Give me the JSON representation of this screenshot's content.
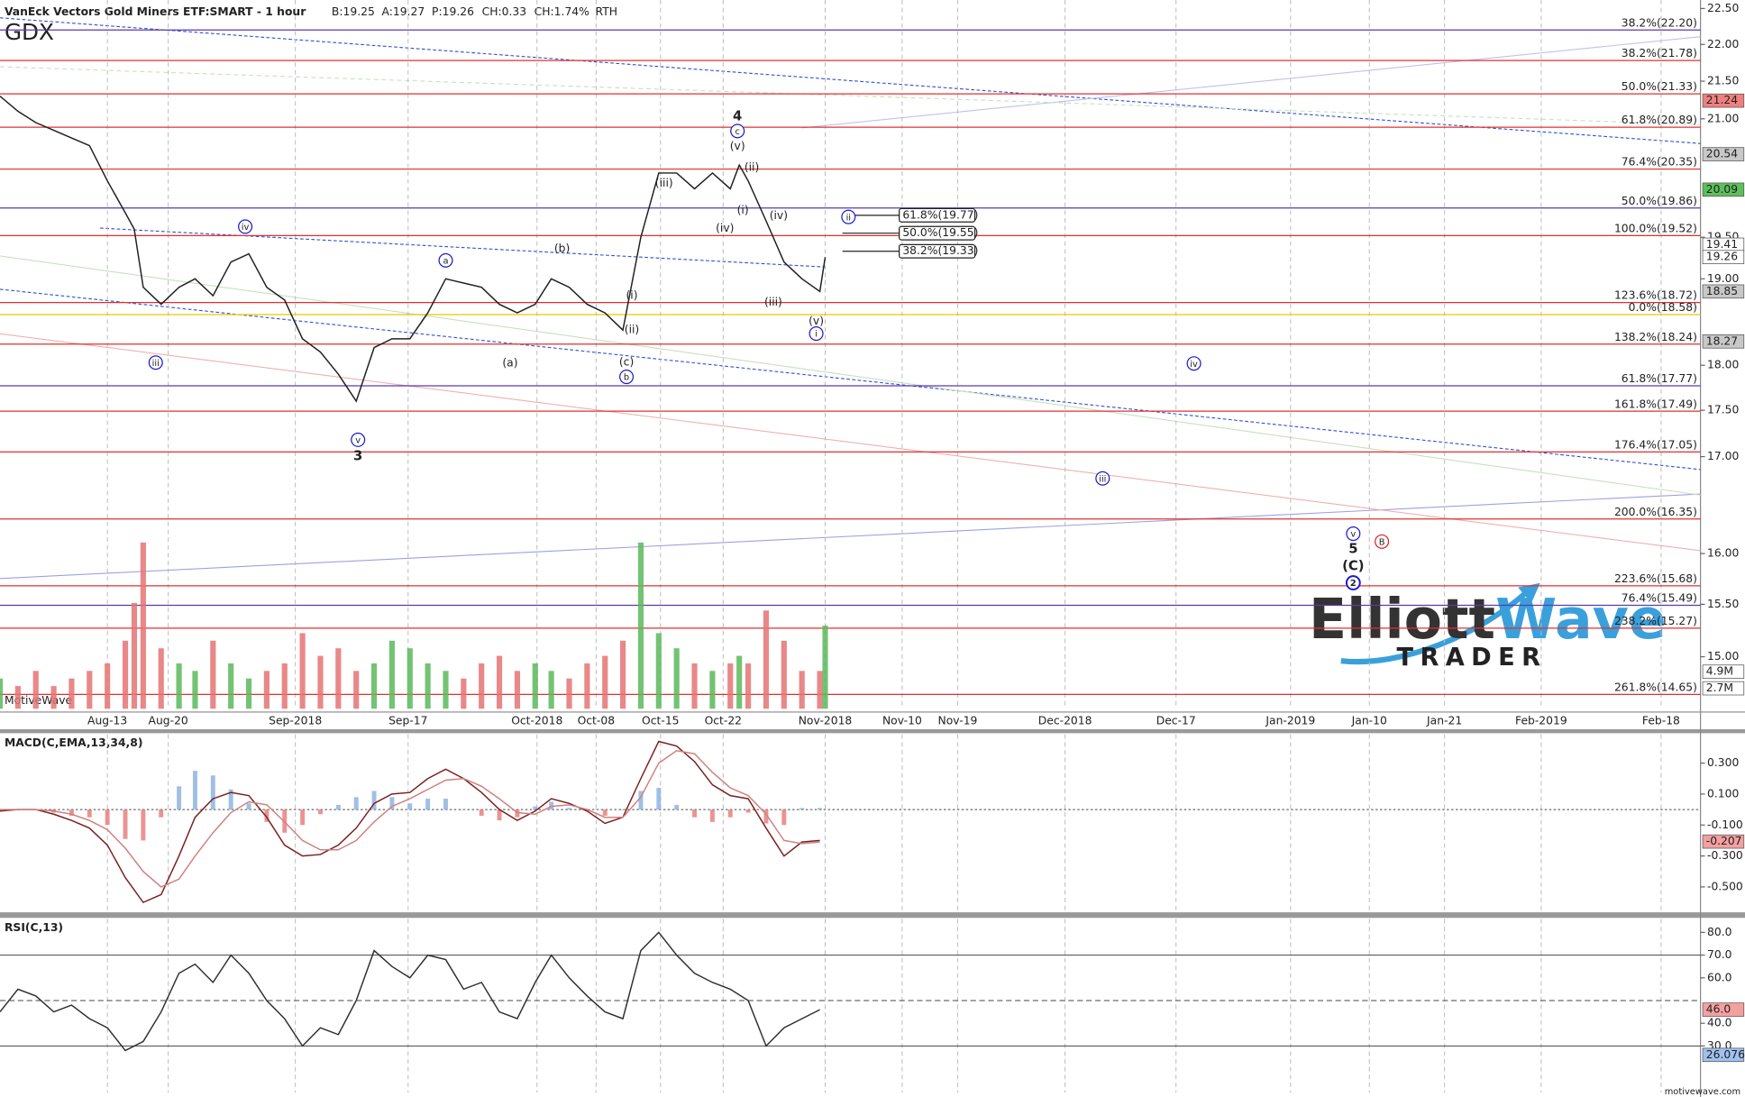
{
  "chart_data": [
    {
      "type": "line",
      "title": "VanEck Vectors Gold Miners ETF:SMART - 1 hour",
      "symbol": "GDX",
      "quote": [
        {
          "text": "B:19.25",
          "color": "#404040"
        },
        {
          "text": "A:19.27",
          "color": "#404040"
        },
        {
          "text": "P:19.26",
          "color": "#404040"
        },
        {
          "text": "CH:0.33",
          "color": "#1a9a1a"
        },
        {
          "text": "CH:1.74%",
          "color": "#1a9a1a"
        },
        {
          "text": "RTH",
          "color": "#8fb0e0"
        }
      ],
      "log_scale": true,
      "x": [
        0,
        10,
        20,
        30,
        40,
        50,
        60,
        70,
        75,
        80,
        90,
        100,
        109,
        119,
        129,
        139,
        149,
        159,
        169,
        179,
        189,
        199,
        209,
        219,
        229,
        239,
        249,
        259,
        269,
        279,
        289,
        299,
        308,
        318,
        328,
        338,
        348,
        358,
        368,
        378,
        388,
        398,
        408,
        413,
        418,
        428,
        438,
        448,
        458,
        461
      ],
      "xlim": [
        0,
        950
      ],
      "xticks": [
        {
          "value": 60,
          "label": "Aug-13"
        },
        {
          "value": 94,
          "label": "Aug-20"
        },
        {
          "value": 165,
          "label": "Sep-2018"
        },
        {
          "value": 228,
          "label": "Sep-17"
        },
        {
          "value": 300,
          "label": "Oct-2018"
        },
        {
          "value": 333,
          "label": "Oct-08"
        },
        {
          "value": 369,
          "label": "Oct-15"
        },
        {
          "value": 404,
          "label": "Oct-22"
        },
        {
          "value": 461,
          "label": "Nov-2018"
        },
        {
          "value": 504,
          "label": "Nov-10"
        },
        {
          "value": 535,
          "label": "Nov-19"
        },
        {
          "value": 595,
          "label": "Dec-2018"
        },
        {
          "value": 657,
          "label": "Dec-17"
        },
        {
          "value": 721,
          "label": "Jan-2019"
        },
        {
          "value": 765,
          "label": "Jan-10"
        },
        {
          "value": 807,
          "label": "Jan-21"
        },
        {
          "value": 861,
          "label": "Feb-2019"
        },
        {
          "value": 928,
          "label": "Feb-18"
        }
      ],
      "ylim": [
        14.52,
        22.62
      ],
      "yticks": [
        {
          "value": 22.5,
          "label": "22.50"
        },
        {
          "value": 22,
          "label": "22.00"
        },
        {
          "value": 21.5,
          "label": "21.50"
        },
        {
          "value": 21,
          "label": "21.00"
        },
        {
          "value": 19.5,
          "label": "19.50"
        },
        {
          "value": 19,
          "label": "19.00"
        },
        {
          "value": 18,
          "label": "18.00"
        },
        {
          "value": 17.5,
          "label": "17.50"
        },
        {
          "value": 17,
          "label": "17.00"
        },
        {
          "value": 16,
          "label": "16.00"
        },
        {
          "value": 15.5,
          "label": "15.50"
        },
        {
          "value": 15,
          "label": "15.00"
        }
      ],
      "y2lim": [
        0,
        93.8
      ],
      "series": [
        {
          "color": "#202020",
          "values": [
            21.3,
            21.1,
            20.95,
            20.85,
            20.75,
            20.65,
            20.2,
            19.8,
            19.6,
            18.9,
            18.7,
            18.9,
            19.0,
            18.8,
            19.2,
            19.3,
            18.9,
            18.75,
            18.3,
            18.15,
            17.9,
            17.6,
            18.2,
            18.3,
            18.3,
            18.6,
            19.0,
            18.95,
            18.9,
            18.7,
            18.6,
            18.7,
            19.0,
            18.9,
            18.7,
            18.6,
            18.4,
            19.5,
            20.3,
            20.3,
            20.1,
            20.3,
            20.1,
            20.4,
            20.2,
            19.7,
            19.2,
            19.0,
            18.85,
            19.26
          ]
        },
        {
          "type": "bar",
          "axis": "y2",
          "color": "#5cb85c",
          "down_color": "#e57373",
          "values": [
            4,
            3,
            5,
            3,
            4,
            5,
            6,
            9,
            14,
            22,
            8,
            6,
            5,
            9,
            6,
            4,
            5,
            6,
            10,
            7,
            8,
            5,
            6,
            9,
            8,
            6,
            5,
            4,
            6,
            7,
            5,
            6,
            5,
            4,
            6,
            7,
            9,
            22,
            10,
            8,
            6,
            5,
            6,
            7,
            6,
            13,
            9,
            5,
            5,
            11
          ]
        }
      ],
      "levels": [
        {
          "value": 22.2,
          "label": "38.2%(22.20)",
          "color": "#5a3ab0"
        },
        {
          "value": 21.78,
          "label": "38.2%(21.78)",
          "color": "#e03030"
        },
        {
          "value": 21.33,
          "label": "50.0%(21.33)",
          "color": "#e03030"
        },
        {
          "value": 20.89,
          "label": "61.8%(20.89)",
          "color": "#e03030"
        },
        {
          "value": 20.35,
          "label": "76.4%(20.35)",
          "color": "#e03030"
        },
        {
          "value": 19.86,
          "label": "50.0%(19.86)",
          "color": "#5a3ab0"
        },
        {
          "value": 19.52,
          "label": "100.0%(19.52)",
          "color": "#e03030"
        },
        {
          "value": 18.72,
          "label": "123.6%(18.72)",
          "color": "#e03030"
        },
        {
          "value": 18.58,
          "label": "0.0%(18.58)",
          "color": "#e8c800"
        },
        {
          "value": 18.24,
          "label": "138.2%(18.24)",
          "color": "#e03030"
        },
        {
          "value": 17.77,
          "label": "61.8%(17.77)",
          "color": "#5a3ab0"
        },
        {
          "value": 17.49,
          "label": "161.8%(17.49)",
          "color": "#e03030"
        },
        {
          "value": 17.05,
          "label": "176.4%(17.05)",
          "color": "#e03030"
        },
        {
          "value": 16.35,
          "label": "200.0%(16.35)",
          "color": "#e03030"
        },
        {
          "value": 15.68,
          "label": "223.6%(15.68)",
          "color": "#e03030"
        },
        {
          "value": 15.49,
          "label": "76.4%(15.49)",
          "color": "#5a3ab0"
        },
        {
          "value": 15.27,
          "label": "238.2%(15.27)",
          "color": "#e03030"
        },
        {
          "value": 14.65,
          "label": "261.8%(14.65)",
          "color": "#e03030"
        }
      ],
      "fib_box": [
        {
          "value": 19.77,
          "label": "61.8%(19.77)"
        },
        {
          "value": 19.55,
          "label": "50.0%(19.55)"
        },
        {
          "value": 19.33,
          "label": "38.2%(19.33)"
        }
      ],
      "price_tags": [
        {
          "value": 21.24,
          "color": "#f08080"
        },
        {
          "value": 20.54,
          "color": "#c8c8c8"
        },
        {
          "value": 20.09,
          "color": "#5cc05c"
        },
        {
          "value": 19.41,
          "color": "#ffffff"
        },
        {
          "value": 19.26,
          "color": "#ffffff"
        },
        {
          "value": 18.85,
          "color": "#c8c8c8"
        },
        {
          "value": 18.27,
          "color": "#c8c8c8"
        },
        {
          "value": 4.9,
          "label": "4.9M",
          "axis": "y2",
          "color": "#ffffff"
        },
        {
          "value": 2.7,
          "label": "2.7M",
          "axis": "y2",
          "color": "#ffffff"
        }
      ],
      "annotation_color": "#1a1ad0",
      "annotations": [
        {
          "text": "iii",
          "x": 87,
          "y": 18.03,
          "circled": true
        },
        {
          "text": "iv",
          "x": 137,
          "y": 19.63,
          "circled": true
        },
        {
          "text": "v",
          "x": 200,
          "y": 17.18,
          "circled": true
        },
        {
          "text": "3",
          "x": 200,
          "y": 17.0,
          "bold": true
        },
        {
          "text": "a",
          "x": 249,
          "y": 19.22,
          "circled": true
        },
        {
          "text": "(a)",
          "x": 285,
          "y": 18.02
        },
        {
          "text": "(b)",
          "x": 314,
          "y": 19.36
        },
        {
          "text": "(c)",
          "x": 350,
          "y": 18.03
        },
        {
          "text": "b",
          "x": 350,
          "y": 17.87,
          "circled": true
        },
        {
          "text": "(i)",
          "x": 353,
          "y": 18.8
        },
        {
          "text": "(ii)",
          "x": 353,
          "y": 18.4
        },
        {
          "text": "(iii)",
          "x": 371,
          "y": 20.17
        },
        {
          "text": "(v)",
          "x": 412,
          "y": 20.64
        },
        {
          "text": "c",
          "x": 412,
          "y": 20.84,
          "circled": true
        },
        {
          "text": "4",
          "x": 412,
          "y": 21.03,
          "bold": true
        },
        {
          "text": "(ii)",
          "x": 420,
          "y": 20.37
        },
        {
          "text": "(i)",
          "x": 415,
          "y": 19.83
        },
        {
          "text": "(iv)",
          "x": 405,
          "y": 19.61
        },
        {
          "text": "(iv)",
          "x": 435,
          "y": 19.76
        },
        {
          "text": "(iii)",
          "x": 432,
          "y": 18.72
        },
        {
          "text": "(v)",
          "x": 456,
          "y": 18.5
        },
        {
          "text": "i",
          "x": 456,
          "y": 18.36,
          "circled": true
        },
        {
          "text": "ii",
          "x": 474,
          "y": 19.75,
          "circled": true
        },
        {
          "text": "iv",
          "x": 667,
          "y": 18.02,
          "circled": true
        },
        {
          "text": "iii",
          "x": 616,
          "y": 16.77,
          "circled": true
        },
        {
          "text": "v",
          "x": 756,
          "y": 16.2,
          "circled": true
        },
        {
          "text": "5",
          "x": 756,
          "y": 16.04,
          "bold": true
        },
        {
          "text": "(C)",
          "x": 756,
          "y": 15.87,
          "bold": true
        },
        {
          "text": "2",
          "x": 756,
          "y": 15.71,
          "circled": true,
          "bold": true
        },
        {
          "text": "B",
          "x": 772,
          "y": 16.12,
          "circled": true,
          "color": "#e02020"
        }
      ]
    },
    {
      "type": "line",
      "title": "MACD(C,EMA,13,34,8)",
      "x": [
        0,
        10,
        20,
        30,
        40,
        50,
        60,
        70,
        80,
        90,
        100,
        109,
        119,
        129,
        139,
        149,
        159,
        169,
        179,
        189,
        199,
        209,
        219,
        229,
        239,
        249,
        259,
        269,
        279,
        289,
        299,
        308,
        318,
        328,
        338,
        348,
        358,
        368,
        378,
        388,
        398,
        408,
        418,
        428,
        438,
        448,
        458
      ],
      "ylim": [
        -0.664,
        0.486
      ],
      "yticks": [
        {
          "value": 0.3,
          "label": "0.300"
        },
        {
          "value": 0.1,
          "label": "0.100"
        },
        {
          "value": -0.1,
          "label": "-0.100"
        },
        {
          "value": -0.3,
          "label": "-0.300"
        },
        {
          "value": -0.5,
          "label": "-0.500"
        }
      ],
      "ref_lines": [
        {
          "value": 0,
          "style": "dotted"
        }
      ],
      "series": [
        {
          "type": "bar",
          "color": "#8fb4e0",
          "down_color": "#e88080",
          "values": [
            -0.01,
            0,
            0,
            -0.02,
            -0.04,
            -0.05,
            -0.1,
            -0.19,
            -0.2,
            -0.05,
            0.15,
            0.25,
            0.22,
            0.13,
            0.04,
            -0.08,
            -0.15,
            -0.1,
            -0.03,
            0.03,
            0.08,
            0.12,
            0.08,
            0.04,
            0.07,
            0.07,
            0,
            -0.04,
            -0.07,
            -0.05,
            0.02,
            0.05,
            0.01,
            -0.01,
            -0.04,
            0,
            0.12,
            0.14,
            0.03,
            -0.05,
            -0.08,
            -0.05,
            -0.02,
            -0.09,
            -0.1,
            0.01,
            0.01
          ]
        },
        {
          "color": "#7a2020",
          "values": [
            -0.01,
            0.0,
            0.0,
            -0.03,
            -0.07,
            -0.12,
            -0.23,
            -0.44,
            -0.6,
            -0.55,
            -0.3,
            -0.05,
            0.07,
            0.11,
            0.09,
            -0.05,
            -0.23,
            -0.3,
            -0.29,
            -0.23,
            -0.12,
            0.04,
            0.1,
            0.11,
            0.2,
            0.26,
            0.2,
            0.11,
            0.0,
            -0.07,
            -0.01,
            0.07,
            0.04,
            -0.01,
            -0.09,
            -0.05,
            0.2,
            0.44,
            0.41,
            0.31,
            0.16,
            0.09,
            0.07,
            -0.12,
            -0.3,
            -0.21,
            -0.2
          ]
        },
        {
          "color": "#d08080",
          "values": [
            0.0,
            0.0,
            0.0,
            -0.01,
            -0.03,
            -0.07,
            -0.13,
            -0.25,
            -0.4,
            -0.5,
            -0.45,
            -0.3,
            -0.15,
            -0.02,
            0.05,
            0.03,
            -0.08,
            -0.2,
            -0.26,
            -0.26,
            -0.2,
            -0.08,
            0.02,
            0.07,
            0.13,
            0.19,
            0.2,
            0.15,
            0.07,
            -0.02,
            -0.03,
            0.02,
            0.03,
            0.0,
            -0.05,
            -0.05,
            0.08,
            0.3,
            0.38,
            0.36,
            0.24,
            0.14,
            0.09,
            -0.03,
            -0.2,
            -0.22,
            -0.21
          ]
        }
      ],
      "price_tags": [
        {
          "value": -0.207,
          "color": "#f4a0a0"
        }
      ]
    },
    {
      "type": "line",
      "title": "RSI(C,13)",
      "x": [
        0,
        10,
        20,
        30,
        40,
        50,
        60,
        70,
        80,
        90,
        100,
        109,
        119,
        129,
        139,
        149,
        159,
        169,
        179,
        189,
        199,
        209,
        219,
        229,
        239,
        249,
        259,
        269,
        279,
        289,
        299,
        308,
        318,
        328,
        338,
        348,
        358,
        368,
        378,
        388,
        398,
        408,
        418,
        428,
        438,
        448,
        458
      ],
      "ylim": [
        9.5,
        85.9
      ],
      "yticks": [
        {
          "value": 80,
          "label": "80.0"
        },
        {
          "value": 70,
          "label": "70.0"
        },
        {
          "value": 60,
          "label": "60.0"
        },
        {
          "value": 40,
          "label": "40.0"
        },
        {
          "value": 30,
          "label": "30.0"
        }
      ],
      "ref_lines": [
        {
          "value": 70,
          "style": "solid"
        },
        {
          "value": 50,
          "style": "dashed"
        },
        {
          "value": 30,
          "style": "solid"
        }
      ],
      "series": [
        {
          "color": "#303030",
          "values": [
            45,
            55,
            52,
            45,
            48,
            42,
            38,
            28,
            32,
            45,
            62,
            66,
            58,
            70,
            62,
            50,
            42,
            30,
            38,
            35,
            50,
            72,
            65,
            60,
            70,
            68,
            55,
            58,
            45,
            42,
            58,
            70,
            60,
            52,
            45,
            42,
            72,
            80,
            70,
            62,
            58,
            55,
            50,
            30,
            38,
            42,
            46
          ]
        }
      ],
      "price_tags": [
        {
          "value": 46,
          "label": "46.0",
          "color": "#f4a0a0"
        },
        {
          "value": 26.076,
          "color": "#a0c0f0"
        }
      ]
    }
  ],
  "branding": {
    "watermark": "MotiveWave",
    "site": "motivewave.com",
    "logo_elliott": "Elliott",
    "logo_wave": "Wave",
    "logo_trader": "TRADER"
  }
}
